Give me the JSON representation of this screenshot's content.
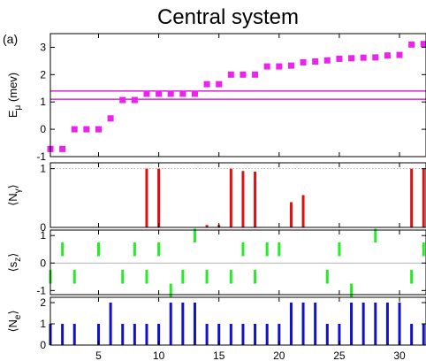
{
  "figure": {
    "title": "Central system",
    "panel_label": "(a)"
  },
  "chart_data": [
    {
      "id": "energies",
      "type": "scatter",
      "ylabel": "E_μ (mev)",
      "xlim": [
        1,
        32.2
      ],
      "ylim": [
        -1,
        3.5
      ],
      "yticks": [
        -1,
        0,
        1,
        2,
        3
      ],
      "marker_color": "#ee22ee",
      "hlines": [
        1.1,
        1.4
      ],
      "hline_color": "#cc00cc",
      "x": [
        1,
        2,
        3,
        4,
        5,
        6,
        7,
        8,
        9,
        10,
        11,
        12,
        13,
        14,
        15,
        16,
        17,
        18,
        19,
        20,
        21,
        22,
        23,
        24,
        25,
        26,
        27,
        28,
        29,
        30,
        31,
        32
      ],
      "values": [
        -0.72,
        -0.72,
        0.0,
        0.0,
        0.0,
        0.4,
        1.07,
        1.07,
        1.3,
        1.3,
        1.3,
        1.3,
        1.3,
        1.65,
        1.65,
        2.0,
        2.0,
        2.0,
        2.3,
        2.3,
        2.33,
        2.45,
        2.48,
        2.52,
        2.58,
        2.6,
        2.62,
        2.63,
        2.7,
        2.72,
        3.1,
        3.12
      ]
    },
    {
      "id": "Ngamma",
      "type": "bar",
      "ylabel": "⟨N_γ⟩",
      "xlim": [
        1,
        32.2
      ],
      "ylim": [
        0,
        1.1
      ],
      "yticks": [
        0,
        1
      ],
      "bar_color": "#dd1111",
      "reference_line": 1.0,
      "reference_line_style": "dotted",
      "x": [
        9,
        10,
        14,
        15,
        16,
        17,
        18,
        21,
        22,
        31,
        32
      ],
      "values": [
        1.0,
        1.0,
        0.04,
        0.04,
        1.0,
        0.96,
        0.95,
        0.43,
        0.55,
        1.0,
        1.0
      ]
    },
    {
      "id": "sz",
      "type": "bar",
      "ylabel": "⟨s_z⟩",
      "xlim": [
        1,
        32.2
      ],
      "ylim": [
        -1.15,
        1.2
      ],
      "yticks": [
        -1,
        0,
        1
      ],
      "bar_color": "#22ee22",
      "reference_line": 0,
      "reference_line_style": "solid",
      "bar_style": "floating",
      "x": [
        1,
        2,
        3,
        5,
        7,
        8,
        9,
        10,
        11,
        12,
        13,
        14,
        16,
        17,
        18,
        19,
        20,
        24,
        25,
        26,
        28,
        31,
        32
      ],
      "values": [
        -0.5,
        0.5,
        -0.5,
        0.5,
        -0.5,
        0.5,
        -0.5,
        0.5,
        -1.0,
        -0.5,
        1.0,
        -0.5,
        -0.5,
        0.5,
        -0.5,
        0.5,
        0.5,
        -0.5,
        0.5,
        -1.0,
        1.0,
        -0.5,
        0.5
      ]
    },
    {
      "id": "Ne",
      "type": "bar",
      "ylabel": "⟨N_e⟩",
      "xlim": [
        1,
        32.2
      ],
      "ylim": [
        0,
        2.25
      ],
      "yticks": [
        0,
        1,
        2
      ],
      "bar_color": "#1111cc",
      "x": [
        1,
        2,
        3,
        5,
        6,
        7,
        8,
        9,
        10,
        11,
        12,
        13,
        14,
        15,
        16,
        17,
        18,
        19,
        20,
        21,
        22,
        23,
        24,
        25,
        26,
        27,
        28,
        29,
        30,
        31,
        32
      ],
      "values": [
        1,
        1,
        1,
        1,
        2,
        1,
        1,
        1,
        1,
        2,
        2,
        2,
        1,
        1,
        1,
        1,
        1,
        1,
        1,
        2,
        2,
        2,
        1,
        1,
        2,
        2,
        2,
        2,
        2,
        1,
        1
      ],
      "xticks": [
        5,
        10,
        15,
        20,
        25,
        30
      ]
    }
  ]
}
